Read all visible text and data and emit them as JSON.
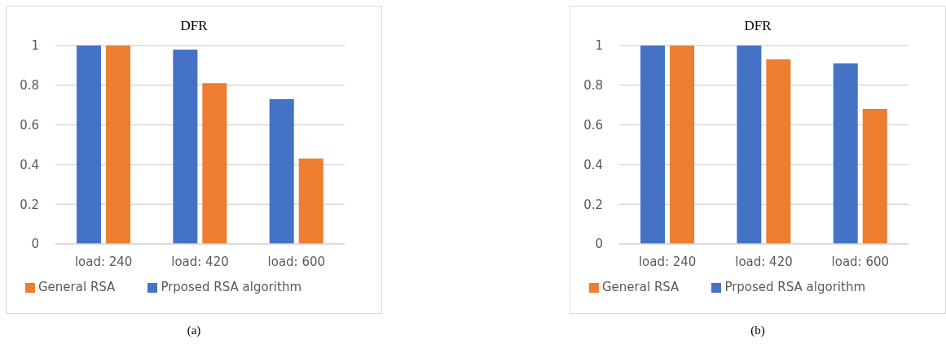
{
  "chart_data": [
    {
      "type": "bar",
      "title": "DFR",
      "categories": [
        "load: 240",
        "load: 420",
        "load: 600"
      ],
      "series": [
        {
          "name": "Prposed RSA algorithm",
          "color": "#4472c4",
          "values": [
            1.0,
            0.98,
            0.73
          ]
        },
        {
          "name": "General RSA",
          "color": "#ed7d31",
          "values": [
            1.0,
            0.81,
            0.43
          ]
        }
      ],
      "ylim": [
        0,
        1
      ],
      "yticks": [
        0,
        0.2,
        0.4,
        0.6,
        0.8,
        1
      ],
      "grid": "y",
      "legend": "bottom",
      "annotations": [
        "(a)"
      ]
    },
    {
      "type": "bar",
      "title": "DFR",
      "categories": [
        "load: 240",
        "load: 420",
        "load: 600"
      ],
      "series": [
        {
          "name": "Prposed RSA algorithm",
          "color": "#4472c4",
          "values": [
            1.0,
            1.0,
            0.91
          ]
        },
        {
          "name": "General RSA",
          "color": "#ed7d31",
          "values": [
            1.0,
            0.93,
            0.68
          ]
        }
      ],
      "ylim": [
        0,
        1
      ],
      "yticks": [
        0,
        0.2,
        0.4,
        0.6,
        0.8,
        1
      ],
      "grid": "y",
      "legend": "bottom",
      "annotations": [
        "(b)"
      ]
    }
  ]
}
